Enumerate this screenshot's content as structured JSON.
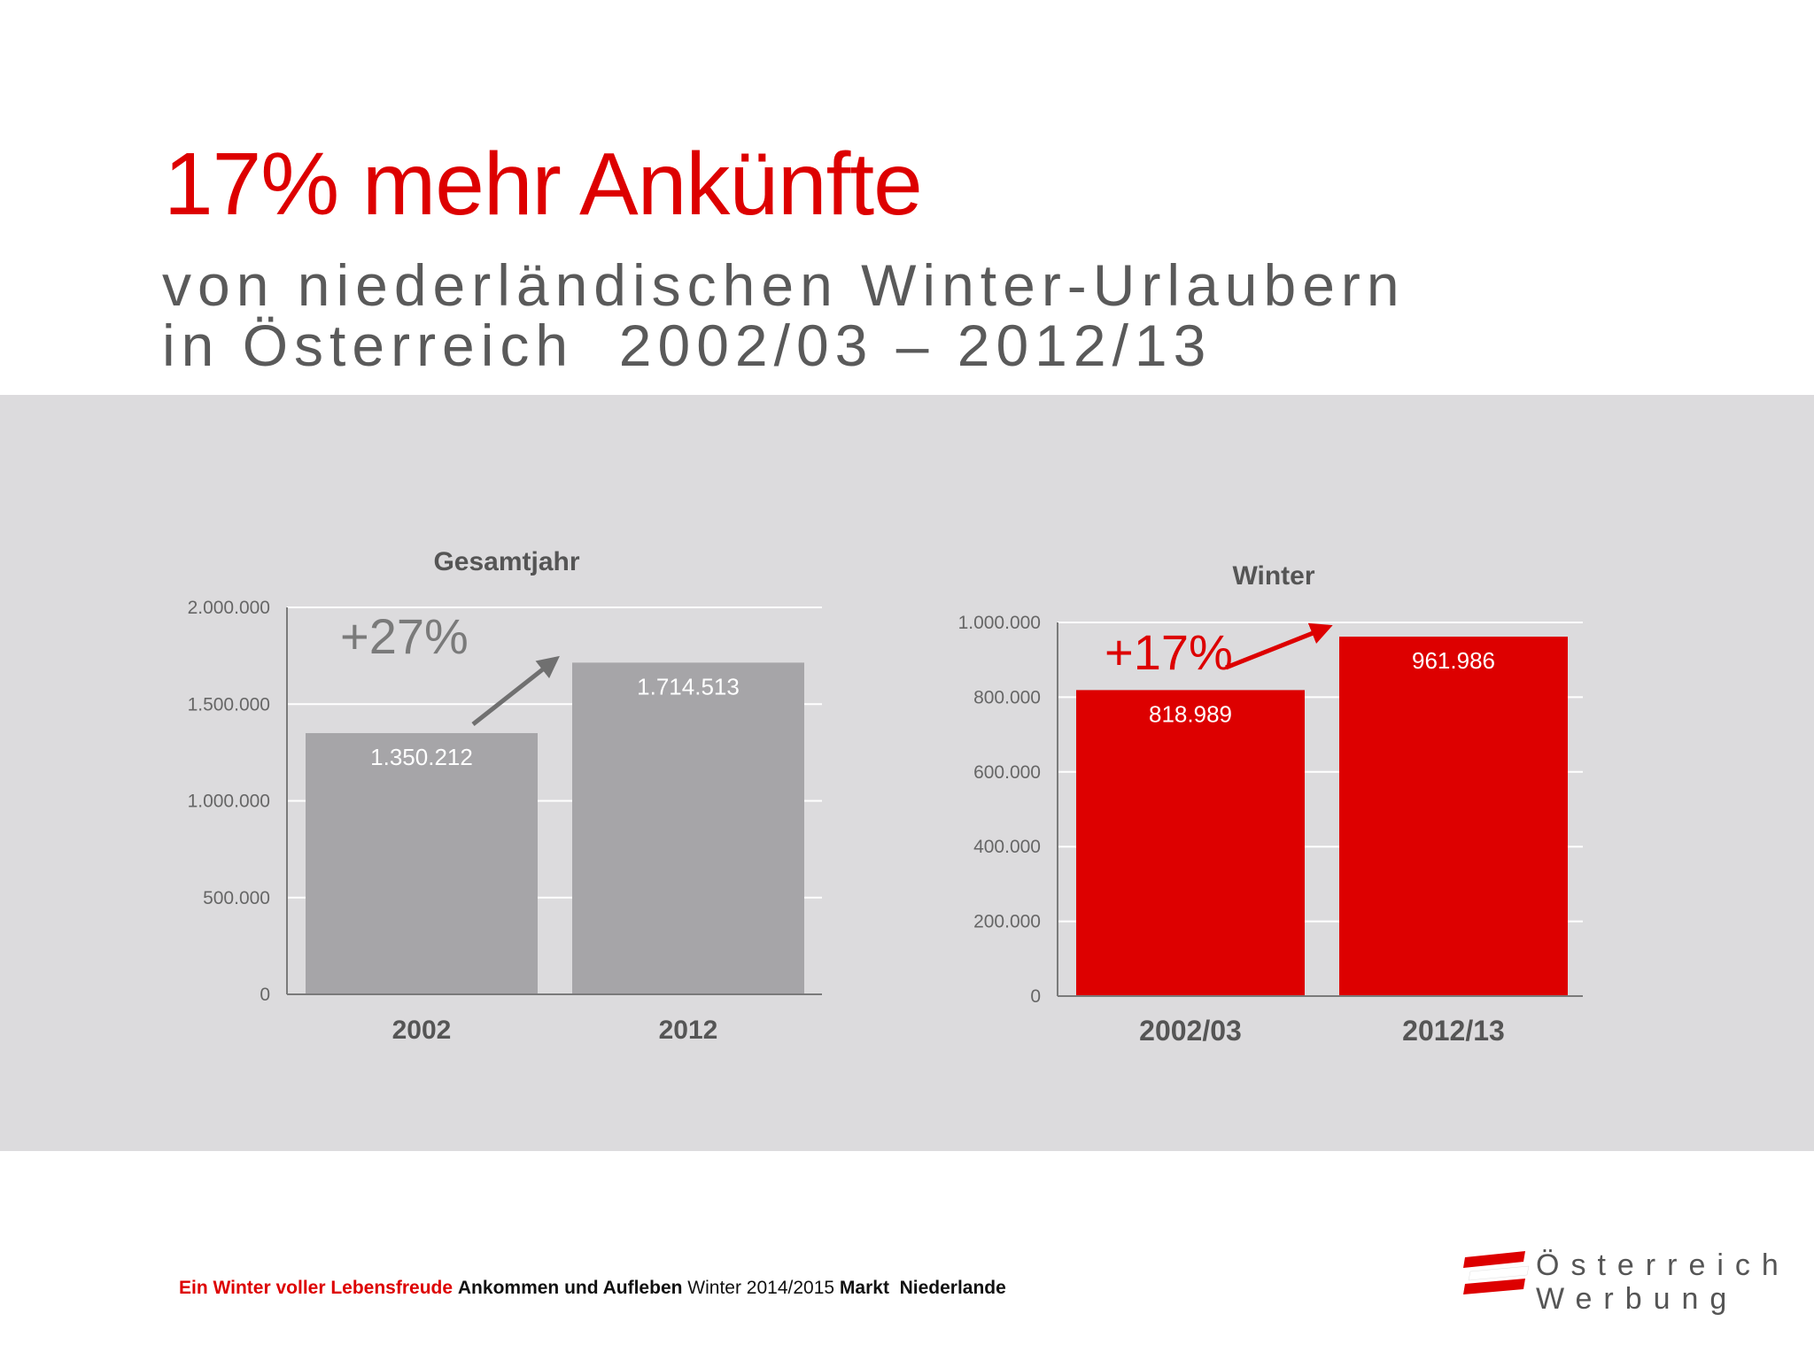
{
  "slide": {
    "title": "17% mehr Ankünfte",
    "subtitle_line1": "von niederländischen Winter-Urlaubern",
    "subtitle_line2": "in Österreich  2002/03 – 2012/13"
  },
  "footer": {
    "part1": "Ein Winter voller Lebensfreude",
    "part2": "Ankommen und Aufleben",
    "part3": "Winter 2014/2015",
    "part4": "Markt  Niederlande"
  },
  "logo": {
    "line1": "Österreich",
    "line2": "Werbung"
  },
  "colors": {
    "accent": "#dd0000",
    "gray_bar": "#a6a5a8",
    "band": "#dcdbdd"
  },
  "chart_data": [
    {
      "type": "bar",
      "title": "Gesamtjahr",
      "categories": [
        "2002",
        "2012"
      ],
      "values": [
        1350212,
        1714513
      ],
      "value_labels": [
        "1.350.212",
        "1.714.513"
      ],
      "ylim": [
        0,
        2000000
      ],
      "y_ticks": [
        0,
        500000,
        1000000,
        1500000,
        2000000
      ],
      "y_tick_labels": [
        "0",
        "500.000",
        "1.000.000",
        "1.500.000",
        "2.000.000"
      ],
      "annotation": "+27%",
      "bar_color": "#a6a5a8",
      "grid": true
    },
    {
      "type": "bar",
      "title": "Winter",
      "categories": [
        "2002/03",
        "2012/13"
      ],
      "values": [
        818989,
        961986
      ],
      "value_labels": [
        "818.989",
        "961.986"
      ],
      "ylim": [
        0,
        1000000
      ],
      "y_ticks": [
        0,
        200000,
        400000,
        600000,
        800000,
        1000000
      ],
      "y_tick_labels": [
        "0",
        "200.000",
        "400.000",
        "600.000",
        "800.000",
        "1.000.000"
      ],
      "annotation": "+17%",
      "bar_color": "#dd0000",
      "grid": true
    }
  ]
}
